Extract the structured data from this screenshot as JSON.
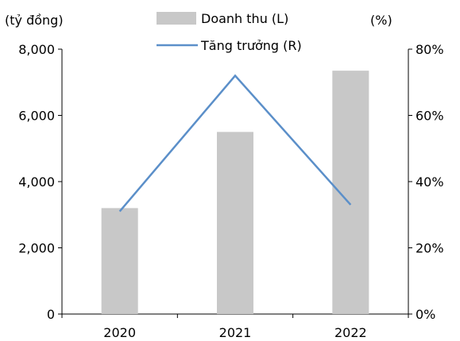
{
  "chart_data": {
    "type": "bar",
    "categories": [
      "2020",
      "2021",
      "2022"
    ],
    "series": [
      {
        "name": "Doanh thu (L)",
        "type": "bar",
        "axis": "left",
        "values": [
          3200,
          5500,
          7350
        ],
        "color": "#c8c8c8"
      },
      {
        "name": "Tăng trưởng (R)",
        "type": "line",
        "axis": "right",
        "values": [
          31,
          72,
          33
        ],
        "color": "#5b8fc9"
      }
    ],
    "left_axis": {
      "unit_label": "(tỷ đồng)",
      "ylim": [
        0,
        8000
      ],
      "ticks": [
        "0",
        "2,000",
        "4,000",
        "6,000",
        "8,000"
      ]
    },
    "right_axis": {
      "unit_label": "(%)",
      "ylim": [
        0,
        80
      ],
      "ticks": [
        "0%",
        "20%",
        "40%",
        "60%",
        "80%"
      ]
    },
    "grid": false,
    "legend_position": "top-center"
  }
}
